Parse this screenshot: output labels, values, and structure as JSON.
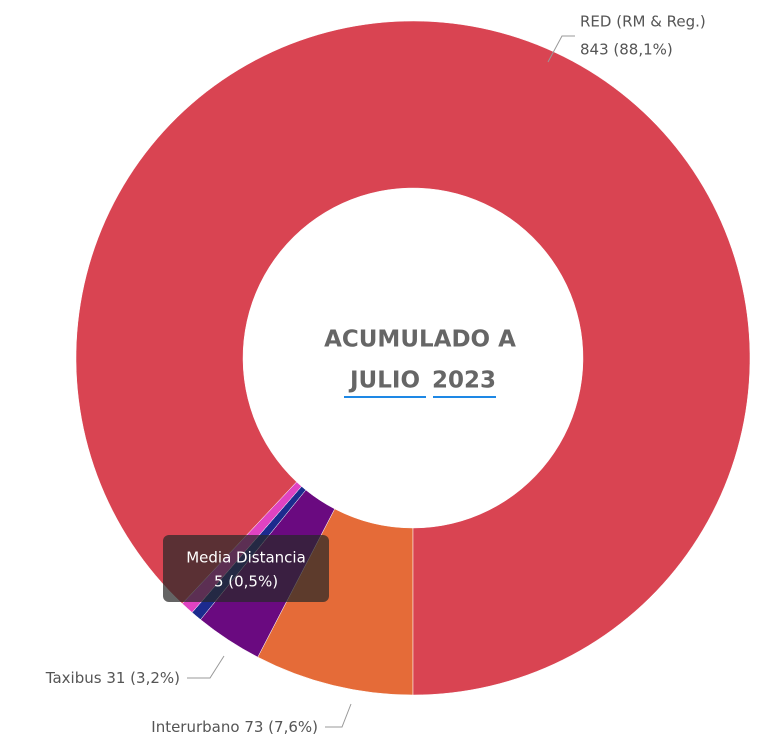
{
  "chart_data": {
    "type": "donut",
    "center_text": [
      "ACUMULADO A",
      "JULIO",
      "2023"
    ],
    "categories": [
      "Interurbano",
      "Taxibus",
      "Media Distancia",
      null,
      "RED (RM & Reg.)"
    ],
    "values": [
      73,
      31,
      5,
      6,
      843
    ],
    "value_labels": [
      "73 (7,6%)",
      "31 (3,2%)",
      "5 (0,5%)",
      null,
      "843 (88,1%)"
    ],
    "colors": [
      "#e56b38",
      "#6a0a80",
      "#1c2b8e",
      "#e043c2",
      "#d94452"
    ]
  }
}
